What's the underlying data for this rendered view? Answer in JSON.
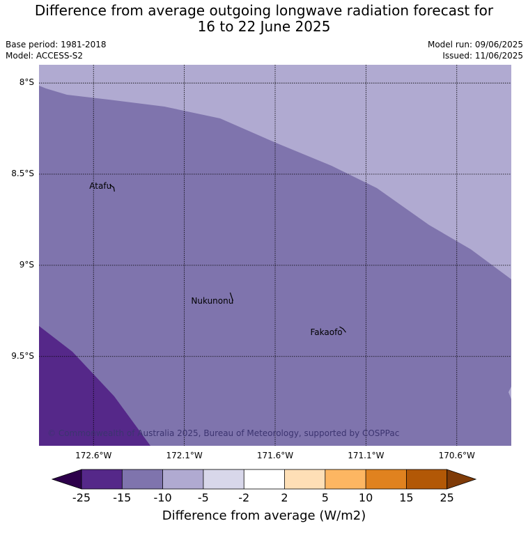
{
  "title_line1": "Difference from average outgoing longwave radiation forecast for",
  "title_line2": "16 to 22 June 2025",
  "base_period": "Base period: 1981-2018",
  "model": "Model: ACCESS-S2",
  "model_run": "Model run: 09/06/2025",
  "issued": "Issued: 11/06/2025",
  "copyright": "© Commonwealth of Australia 2025, Bureau of Meteorology, supported by COSPPac",
  "map": {
    "lon_range": [
      -172.9,
      -170.3
    ],
    "lat_range": [
      -9.99,
      -7.9
    ],
    "lat_ticks": [
      {
        "value": -8.0,
        "label": "8°S"
      },
      {
        "value": -8.5,
        "label": "8.5°S"
      },
      {
        "value": -9.0,
        "label": "9°S"
      },
      {
        "value": -9.5,
        "label": "9.5°S"
      }
    ],
    "lon_ticks": [
      {
        "value": -172.6,
        "label": "172.6°W"
      },
      {
        "value": -172.1,
        "label": "172.1°W"
      },
      {
        "value": -171.6,
        "label": "171.6°W"
      },
      {
        "value": -171.1,
        "label": "171.1°W"
      },
      {
        "value": -170.6,
        "label": "170.6°W"
      }
    ],
    "atolls": [
      {
        "name": "Atafu",
        "lon": -172.5,
        "lat": -8.58
      },
      {
        "name": "Nukunonu",
        "lon": -171.84,
        "lat": -9.18
      },
      {
        "name": "Fakaofo",
        "lon": -171.23,
        "lat": -9.36
      }
    ],
    "regions": [
      {
        "range": "-10 to -5",
        "color": "#b0aad1"
      },
      {
        "range": "-15 to -10",
        "color": "#7f74ad"
      },
      {
        "range": "-25 to -15",
        "color": "#552889"
      }
    ]
  },
  "colorbar": {
    "label": "Difference from average (W/m2)",
    "ticks": [
      "-25",
      "-15",
      "-10",
      "-5",
      "-2",
      "2",
      "5",
      "10",
      "15",
      "25"
    ],
    "colors": [
      "#552889",
      "#7f74ad",
      "#b0aad1",
      "#d8d7ea",
      "#ffffff",
      "#fedfb6",
      "#fdb662",
      "#e0821f",
      "#b25806"
    ],
    "under_color": "#2d004b",
    "over_color": "#7f3b08"
  }
}
